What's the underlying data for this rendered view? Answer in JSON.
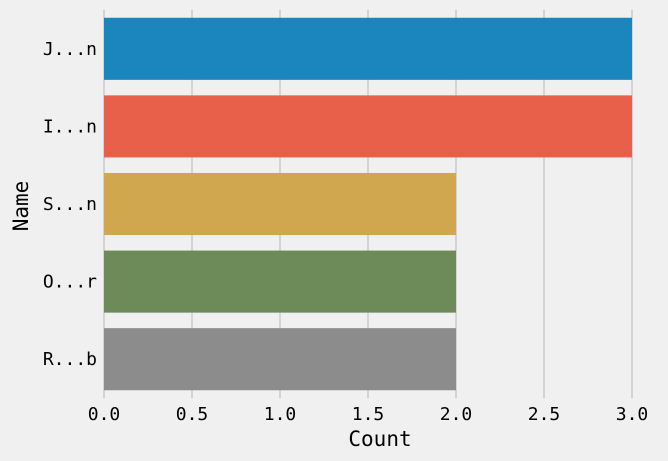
{
  "chart_data": {
    "type": "bar",
    "orientation": "horizontal",
    "categories": [
      "J...n",
      "I...n",
      "S...n",
      "O...r",
      "R...b"
    ],
    "values": [
      3,
      3,
      2,
      2,
      2
    ],
    "colors": [
      "#1a86bd",
      "#e8604a",
      "#d0a64f",
      "#6d8b58",
      "#8c8c8c"
    ],
    "title": "",
    "xlabel": "Count",
    "ylabel": "Name",
    "xlim": [
      0,
      3.0
    ],
    "xticks": [
      "0.0",
      "0.5",
      "1.0",
      "1.5",
      "2.0",
      "2.5",
      "3.0"
    ],
    "xtick_values": [
      0,
      0.5,
      1.0,
      1.5,
      2.0,
      2.5,
      3.0
    ],
    "grid": "vertical",
    "legend": "none"
  }
}
